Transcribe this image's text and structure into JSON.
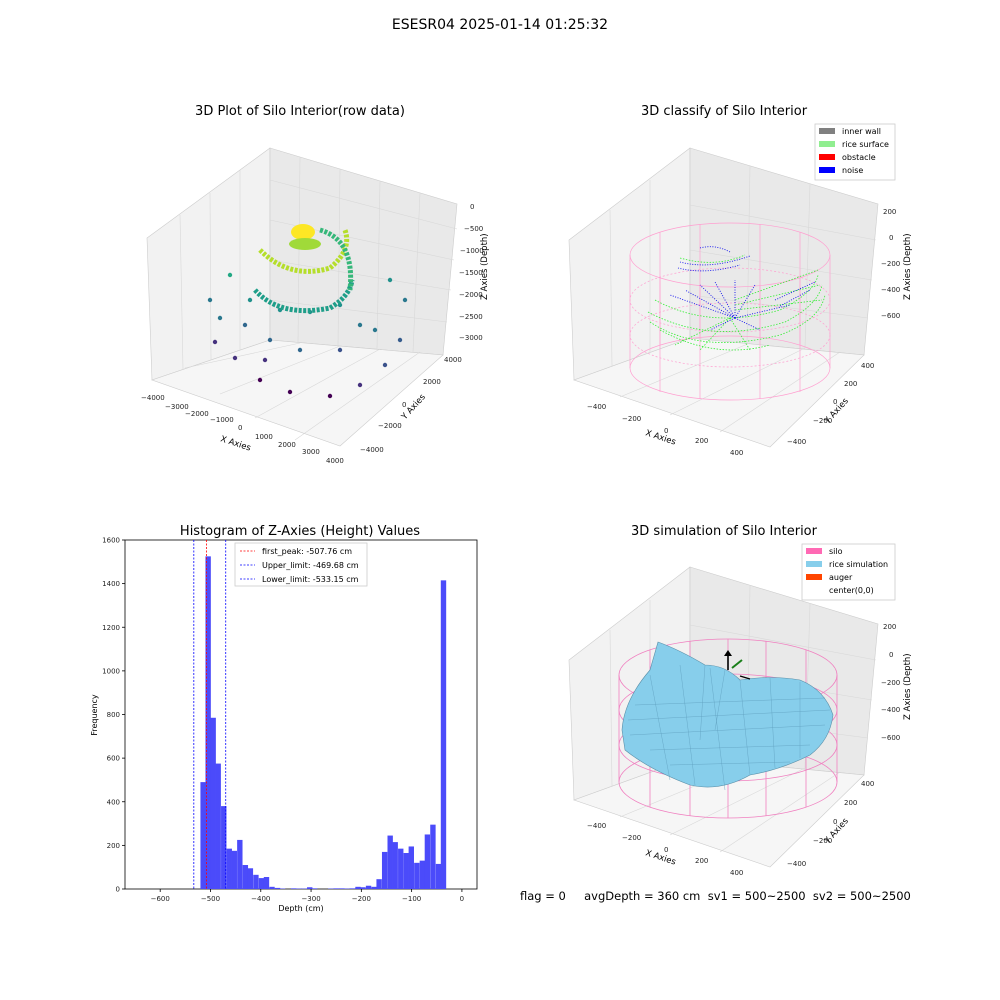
{
  "figure": {
    "suptitle": "ESESR04 2025-01-14 01:25:32",
    "footer": "flag = 0     avgDepth = 360 cm  sv1 = 500~2500  sv2 = 500~2500"
  },
  "chart_data": [
    {
      "type": "scatter",
      "subtype": "3d",
      "title": "3D Plot of Silo Interior(row data)",
      "xlabel": "X Axies",
      "ylabel": "Y Axies",
      "zlabel": "Z Axies (Depth)",
      "xticks": [
        "−4000",
        "−3000",
        "−2000",
        "−1000",
        "0",
        "1000",
        "2000",
        "3000",
        "4000"
      ],
      "yticks": [
        "−4000",
        "−2000",
        "0",
        "2000",
        "4000"
      ],
      "zticks": [
        "0",
        "−500",
        "−1000",
        "−1500",
        "−2000",
        "−2500",
        "−3000"
      ],
      "xlim": [
        -4000,
        4000
      ],
      "ylim": [
        -4000,
        4000
      ],
      "zlim": [
        -3000,
        0
      ],
      "colormap": "viridis",
      "grid": true
    },
    {
      "type": "scatter",
      "subtype": "3d",
      "title": "3D classify of Silo Interior",
      "xlabel": "X Axies",
      "ylabel": "Y Axies",
      "zlabel": "Z Axies (Depth)",
      "xticks": [
        "−400",
        "−200",
        "0",
        "200",
        "400"
      ],
      "yticks": [
        "−400",
        "−200",
        "0",
        "200",
        "400"
      ],
      "zticks": [
        "200",
        "0",
        "−200",
        "−400",
        "−600"
      ],
      "legend_position": "top-right",
      "legend": [
        {
          "label": "inner wall",
          "color": "#808080"
        },
        {
          "label": "rice surface",
          "color": "#90ee90"
        },
        {
          "label": "obstacle",
          "color": "#ff0000"
        },
        {
          "label": "noise",
          "color": "#0000ff"
        }
      ],
      "grid": true
    },
    {
      "type": "bar",
      "subtype": "histogram",
      "title": "Histogram of Z-Axies (Height) Values",
      "xlabel": "Depth (cm)",
      "ylabel": "Frequency",
      "xlim": [
        -670,
        30
      ],
      "ylim": [
        0,
        1600
      ],
      "xticks": [
        -600,
        -500,
        -400,
        -300,
        -200,
        -100,
        0
      ],
      "yticks": [
        0,
        200,
        400,
        600,
        800,
        1000,
        1200,
        1400,
        1600
      ],
      "bin_width": 10.7,
      "bar_color": "#4b4bfa",
      "bins": [
        {
          "start": -520,
          "value": 490
        },
        {
          "start": -510,
          "value": 1525
        },
        {
          "start": -500,
          "value": 785
        },
        {
          "start": -490,
          "value": 575
        },
        {
          "start": -479,
          "value": 380
        },
        {
          "start": -468,
          "value": 185
        },
        {
          "start": -458,
          "value": 175
        },
        {
          "start": -447,
          "value": 225
        },
        {
          "start": -436,
          "value": 110
        },
        {
          "start": -426,
          "value": 95
        },
        {
          "start": -415,
          "value": 65
        },
        {
          "start": -404,
          "value": 50
        },
        {
          "start": -394,
          "value": 55
        },
        {
          "start": -383,
          "value": 10
        },
        {
          "start": -372,
          "value": 5
        },
        {
          "start": -362,
          "value": 2
        },
        {
          "start": -351,
          "value": 0
        },
        {
          "start": -340,
          "value": 3
        },
        {
          "start": -330,
          "value": 2
        },
        {
          "start": -319,
          "value": 2
        },
        {
          "start": -308,
          "value": 8
        },
        {
          "start": -298,
          "value": 3
        },
        {
          "start": -287,
          "value": 0
        },
        {
          "start": -276,
          "value": 0
        },
        {
          "start": -266,
          "value": 2
        },
        {
          "start": -255,
          "value": 3
        },
        {
          "start": -244,
          "value": 3
        },
        {
          "start": -234,
          "value": 2
        },
        {
          "start": -223,
          "value": 3
        },
        {
          "start": -212,
          "value": 10
        },
        {
          "start": -202,
          "value": 8
        },
        {
          "start": -191,
          "value": 15
        },
        {
          "start": -180,
          "value": 10
        },
        {
          "start": -170,
          "value": 45
        },
        {
          "start": -159,
          "value": 170
        },
        {
          "start": -148,
          "value": 245
        },
        {
          "start": -138,
          "value": 215
        },
        {
          "start": -127,
          "value": 185
        },
        {
          "start": -116,
          "value": 165
        },
        {
          "start": -106,
          "value": 195
        },
        {
          "start": -95,
          "value": 120
        },
        {
          "start": -84,
          "value": 130
        },
        {
          "start": -74,
          "value": 250
        },
        {
          "start": -63,
          "value": 295
        },
        {
          "start": -52,
          "value": 115
        },
        {
          "start": -42,
          "value": 1415
        }
      ],
      "vlines": [
        {
          "x": -507.76,
          "color": "#ff0000",
          "label": "first_peak: -507.76 cm"
        },
        {
          "x": -469.68,
          "color": "#0000ff",
          "label": "Upper_limit: -469.68 cm"
        },
        {
          "x": -533.15,
          "color": "#0000ff",
          "label": "Lower_limit: -533.15 cm"
        }
      ],
      "legend_position": "top-center"
    },
    {
      "type": "area",
      "subtype": "3d-surface",
      "title": "3D simulation of Silo Interior",
      "xlabel": "X Axies",
      "ylabel": "Y Axies",
      "zlabel": "Z Axies (Depth)",
      "xticks": [
        "−400",
        "−200",
        "0",
        "200",
        "400"
      ],
      "yticks": [
        "−400",
        "−200",
        "0",
        "200",
        "400"
      ],
      "zticks": [
        "200",
        "0",
        "−200",
        "−400",
        "−600"
      ],
      "legend_position": "top-right",
      "legend": [
        {
          "label": "silo",
          "color": "#ff69b4"
        },
        {
          "label": "rice simulation",
          "color": "#87ceeb"
        },
        {
          "label": "auger",
          "color": "#ff4500"
        },
        {
          "label": "center(0,0)",
          "color": "#ffffff"
        }
      ],
      "grid": true
    }
  ]
}
